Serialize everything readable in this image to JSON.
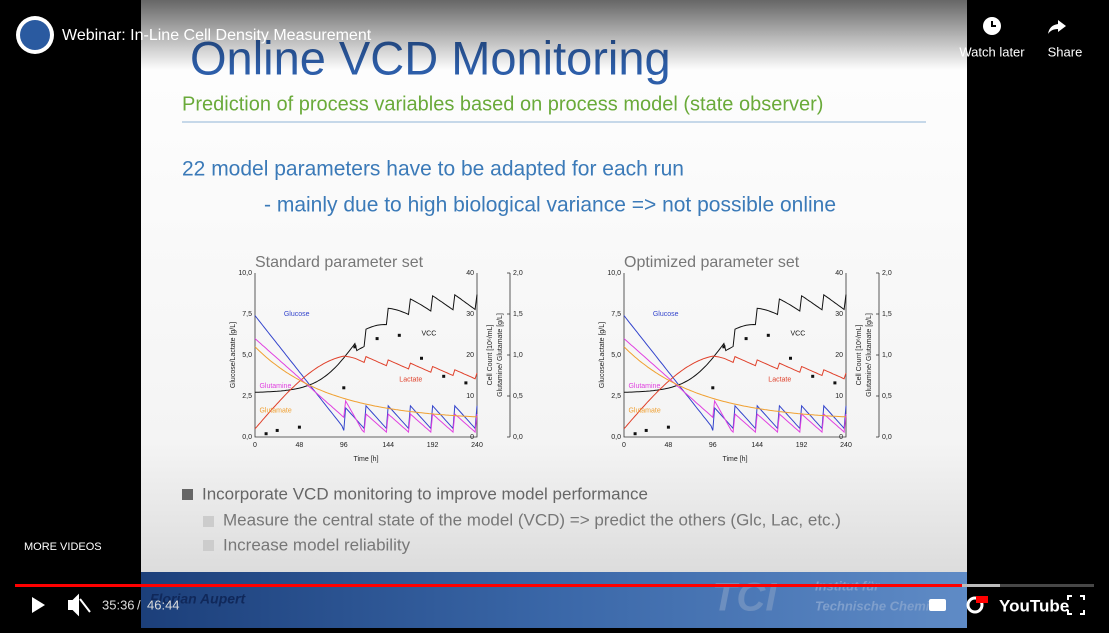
{
  "player": {
    "title": "Webinar: In-Line Cell Density Measurement",
    "watch_later": "Watch later",
    "share": "Share",
    "more_videos": "MORE VIDEOS",
    "current_time": "35:36",
    "duration": "46:44",
    "logo": "YouTube"
  },
  "slide": {
    "title": "Online VCD Monitoring",
    "subtitle": "Prediction of process variables based on process model (state observer)",
    "line1": "22 model parameters have to be adapted for each run",
    "line2": "- mainly due to high biological variance => not possible online",
    "charts": [
      {
        "title": "Standard parameter set",
        "yticks": [
          "10,0",
          "7,5",
          "5,0",
          "2,5",
          "0,0"
        ],
        "y2ticks": [
          40,
          30,
          20,
          10,
          0
        ],
        "y3ticks": [
          "2,0",
          "1,5",
          "1,0",
          "0,5",
          "0,0"
        ],
        "xticks": [
          0,
          48,
          96,
          144,
          192,
          240
        ],
        "ylabel": "Glucose/Lactate [g/L]",
        "y2label": "Cell Count [10⁶/mL]",
        "y3label": "Glutamine/ Glutamate [g/L]",
        "xlabel": "Time [h]",
        "labels": {
          "glucose": "Glucose",
          "vcc": "VCC",
          "lactate": "Lactate",
          "glutamine": "Glutamine",
          "glutamate": "Glutamate"
        }
      },
      {
        "title": "Optimized parameter set",
        "yticks": [
          "10,0",
          "7,5",
          "5,0",
          "2,5",
          "0,0"
        ],
        "y2ticks": [
          40,
          30,
          20,
          10,
          0
        ],
        "y3ticks": [
          "2,0",
          "1,5",
          "1,0",
          "0,5",
          "0,0"
        ],
        "xticks": [
          0,
          48,
          96,
          144,
          192,
          240
        ],
        "ylabel": "Glucose/Lactate [g/L]",
        "y2label": "Cell Count [10⁶/mL]",
        "y3label": "Glutamine/ Glutamate [g/L]",
        "xlabel": "Time [h]",
        "labels": {
          "glucose": "Glucose",
          "vcc": "VCC",
          "lactate": "Lactate",
          "glutamine": "Glutamine",
          "glutamate": "Glutamate"
        }
      }
    ],
    "bullets": [
      "Incorporate VCD monitoring to improve model performance"
    ],
    "sub_bullets": [
      "Measure the central state of the model (VCD)  => predict the others (Glc, Lac, etc.)",
      "Increase model reliability"
    ],
    "footer": {
      "presenter": "Florian Aupert",
      "logo": "TCI",
      "institute_line1": "Institut für",
      "institute_line2": "Technische Chemie"
    }
  }
}
